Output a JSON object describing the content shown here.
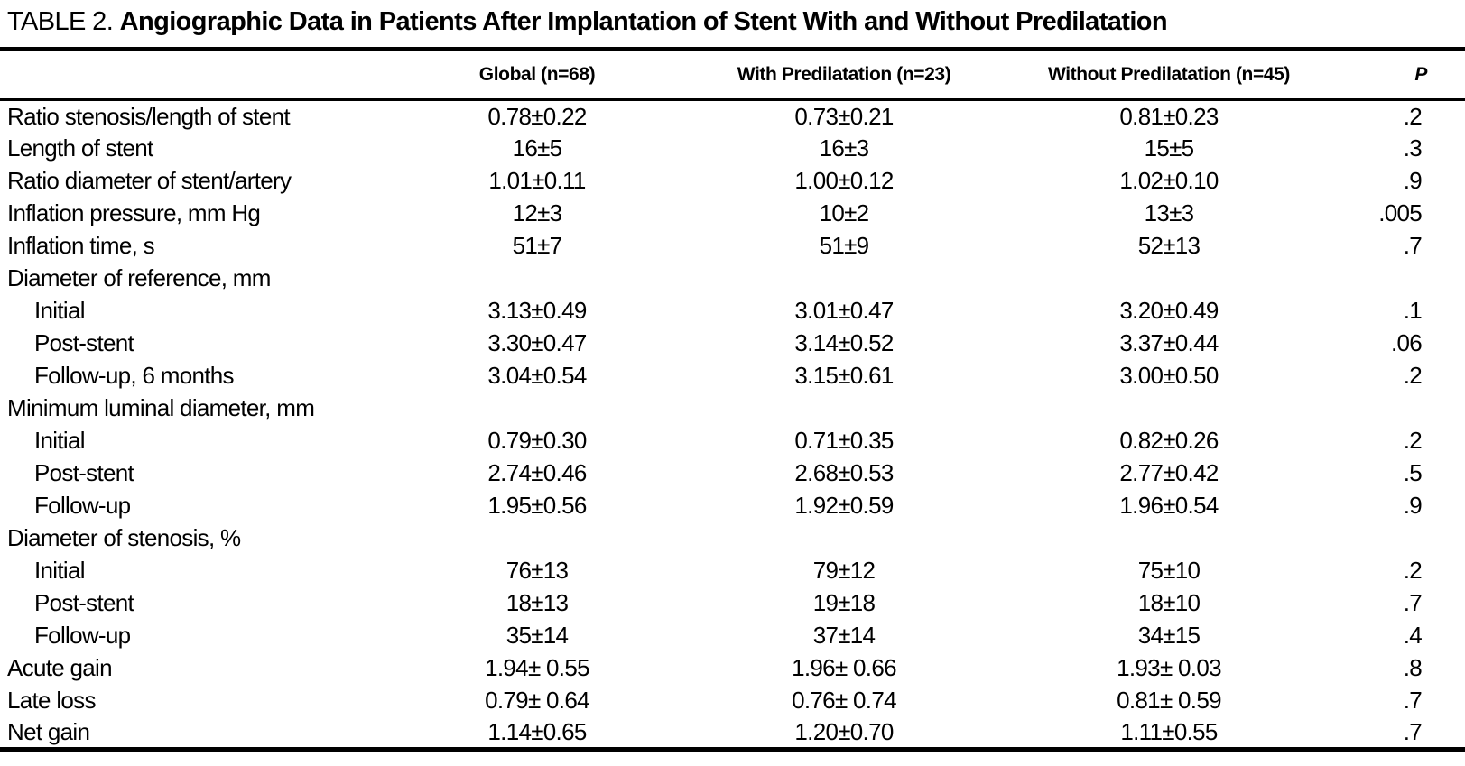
{
  "colors": {
    "text": "#000000",
    "background": "#ffffff",
    "rule": "#000000"
  },
  "table": {
    "label": "TABLE 2.",
    "title": "Angiographic Data in Patients After Implantation of Stent With and Without Predilatation",
    "columns": [
      "",
      "Global (n=68)",
      "With Predilatation (n=23)",
      "Without Predilatation (n=45)",
      "P"
    ],
    "rows": [
      {
        "label": "Ratio stenosis/length of stent",
        "indent": false,
        "section": false,
        "global": "0.78±0.22",
        "with_predilatation": "0.73±0.21",
        "without_predilatation": "0.81±0.23",
        "p": ".2"
      },
      {
        "label": "Length of stent",
        "indent": false,
        "section": false,
        "global": "16±5",
        "with_predilatation": "16±3",
        "without_predilatation": "15±5",
        "p": ".3"
      },
      {
        "label": "Ratio diameter of stent/artery",
        "indent": false,
        "section": false,
        "global": "1.01±0.11",
        "with_predilatation": "1.00±0.12",
        "without_predilatation": "1.02±0.10",
        "p": ".9"
      },
      {
        "label": "Inflation pressure, mm Hg",
        "indent": false,
        "section": false,
        "global": "12±3",
        "with_predilatation": "10±2",
        "without_predilatation": "13±3",
        "p": ".005"
      },
      {
        "label": "Inflation time, s",
        "indent": false,
        "section": false,
        "global": "51±7",
        "with_predilatation": "51±9",
        "without_predilatation": "52±13",
        "p": ".7"
      },
      {
        "label": "Diameter of reference, mm",
        "indent": false,
        "section": true,
        "global": "",
        "with_predilatation": "",
        "without_predilatation": "",
        "p": ""
      },
      {
        "label": "Initial",
        "indent": true,
        "section": false,
        "global": "3.13±0.49",
        "with_predilatation": "3.01±0.47",
        "without_predilatation": "3.20±0.49",
        "p": ".1"
      },
      {
        "label": "Post-stent",
        "indent": true,
        "section": false,
        "global": "3.30±0.47",
        "with_predilatation": "3.14±0.52",
        "without_predilatation": "3.37±0.44",
        "p": ".06"
      },
      {
        "label": "Follow-up, 6 months",
        "indent": true,
        "section": false,
        "global": "3.04±0.54",
        "with_predilatation": "3.15±0.61",
        "without_predilatation": "3.00±0.50",
        "p": ".2"
      },
      {
        "label": "Minimum luminal diameter, mm",
        "indent": false,
        "section": true,
        "global": "",
        "with_predilatation": "",
        "without_predilatation": "",
        "p": ""
      },
      {
        "label": "Initial",
        "indent": true,
        "section": false,
        "global": "0.79±0.30",
        "with_predilatation": "0.71±0.35",
        "without_predilatation": "0.82±0.26",
        "p": ".2"
      },
      {
        "label": "Post-stent",
        "indent": true,
        "section": false,
        "global": "2.74±0.46",
        "with_predilatation": "2.68±0.53",
        "without_predilatation": "2.77±0.42",
        "p": ".5"
      },
      {
        "label": "Follow-up",
        "indent": true,
        "section": false,
        "global": "1.95±0.56",
        "with_predilatation": "1.92±0.59",
        "without_predilatation": "1.96±0.54",
        "p": ".9"
      },
      {
        "label": "Diameter of stenosis, %",
        "indent": false,
        "section": true,
        "global": "",
        "with_predilatation": "",
        "without_predilatation": "",
        "p": ""
      },
      {
        "label": "Initial",
        "indent": true,
        "section": false,
        "global": "76±13",
        "with_predilatation": "79±12",
        "without_predilatation": "75±10",
        "p": ".2"
      },
      {
        "label": "Post-stent",
        "indent": true,
        "section": false,
        "global": "18±13",
        "with_predilatation": "19±18",
        "without_predilatation": "18±10",
        "p": ".7"
      },
      {
        "label": "Follow-up",
        "indent": true,
        "section": false,
        "global": "35±14",
        "with_predilatation": "37±14",
        "without_predilatation": "34±15",
        "p": ".4"
      },
      {
        "label": "Acute gain",
        "indent": false,
        "section": false,
        "global": "1.94± 0.55",
        "with_predilatation": "1.96± 0.66",
        "without_predilatation": "1.93± 0.03",
        "p": ".8"
      },
      {
        "label": "Late loss",
        "indent": false,
        "section": false,
        "global": "0.79± 0.64",
        "with_predilatation": "0.76± 0.74",
        "without_predilatation": "0.81± 0.59",
        "p": ".7"
      },
      {
        "label": "Net gain",
        "indent": false,
        "section": false,
        "global": "1.14±0.65",
        "with_predilatation": "1.20±0.70",
        "without_predilatation": "1.11±0.55",
        "p": ".7"
      }
    ]
  }
}
